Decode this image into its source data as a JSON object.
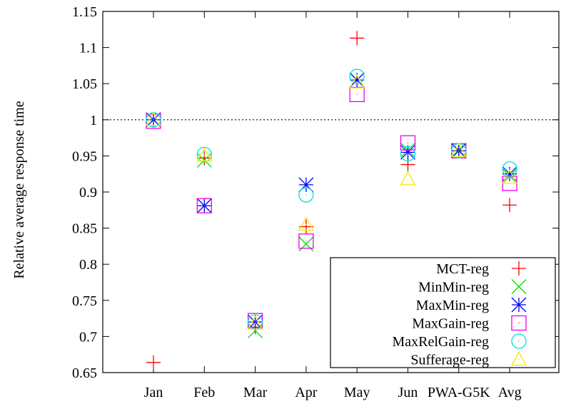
{
  "chart_data": {
    "type": "scatter",
    "ylabel": "Relative average response time",
    "xlabel": "",
    "categories": [
      "Jan",
      "Feb",
      "Mar",
      "Apr",
      "May",
      "Jun",
      "PWA-G5K",
      "Avg"
    ],
    "ylim": [
      0.65,
      1.15
    ],
    "yticks": [
      "0.65",
      "0.7",
      "0.75",
      "0.8",
      "0.85",
      "0.9",
      "0.95",
      "1",
      "1.05",
      "1.1",
      "1.15"
    ],
    "reference_line": 1.0,
    "legend_position": "bottom-right",
    "series": [
      {
        "name": "MCT-reg",
        "marker": "plus",
        "color": "#ff0000",
        "values": [
          0.664,
          0.947,
          0.713,
          0.852,
          1.113,
          0.938,
          0.957,
          0.882
        ]
      },
      {
        "name": "MinMin-reg",
        "marker": "cross",
        "color": "#00dd00",
        "values": [
          1.0,
          0.944,
          0.708,
          0.828,
          1.055,
          0.958,
          0.958,
          0.922
        ]
      },
      {
        "name": "MaxMin-reg",
        "marker": "star",
        "color": "#0000ff",
        "values": [
          1.0,
          0.881,
          0.72,
          0.91,
          1.055,
          0.955,
          0.957,
          0.925
        ]
      },
      {
        "name": "MaxGain-reg",
        "marker": "square",
        "color": "#ee00ee",
        "values": [
          0.998,
          0.881,
          0.722,
          0.832,
          1.035,
          0.968,
          0.957,
          0.912
        ]
      },
      {
        "name": "MaxRelGain-reg",
        "marker": "circle",
        "color": "#00dddd",
        "values": [
          1.0,
          0.952,
          0.72,
          0.896,
          1.06,
          0.953,
          0.957,
          0.932
        ]
      },
      {
        "name": "Sufferage-reg",
        "marker": "triangle",
        "color": "#eeee00",
        "values": [
          1.0,
          0.951,
          0.718,
          0.855,
          1.052,
          0.918,
          0.957,
          0.92
        ]
      }
    ]
  }
}
